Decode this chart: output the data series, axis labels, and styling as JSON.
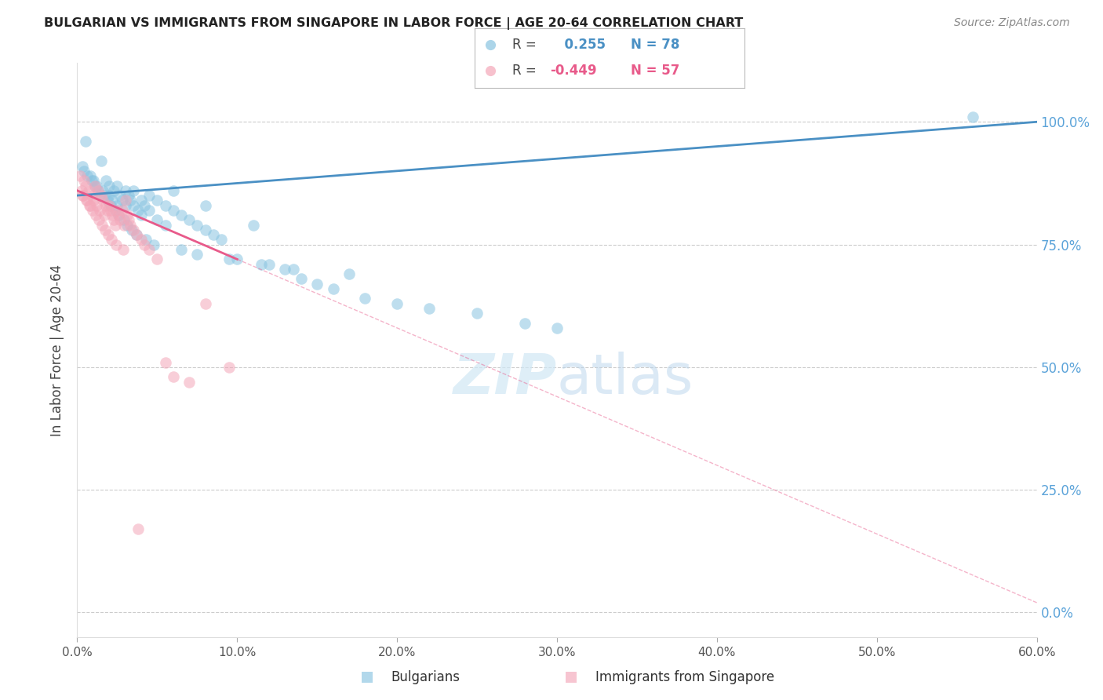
{
  "title": "BULGARIAN VS IMMIGRANTS FROM SINGAPORE IN LABOR FORCE | AGE 20-64 CORRELATION CHART",
  "source": "Source: ZipAtlas.com",
  "ylabel": "In Labor Force | Age 20-64",
  "xlabel_ticks": [
    "0.0%",
    "10.0%",
    "20.0%",
    "30.0%",
    "40.0%",
    "50.0%",
    "60.0%"
  ],
  "xlabel_vals": [
    0,
    10,
    20,
    30,
    40,
    50,
    60
  ],
  "ylabel_ticks": [
    "0.0%",
    "25.0%",
    "50.0%",
    "75.0%",
    "100.0%"
  ],
  "ylabel_vals": [
    0,
    25,
    50,
    75,
    100
  ],
  "xlim": [
    0,
    60
  ],
  "ylim": [
    -5,
    112
  ],
  "bg_color": "#ffffff",
  "grid_color": "#cccccc",
  "blue_color": "#89c4e1",
  "pink_color": "#f4a7b9",
  "blue_line_color": "#4a90c4",
  "pink_line_color": "#e85a8a",
  "right_axis_color": "#5ba3d9",
  "legend_blue_R": "0.255",
  "legend_blue_N": "78",
  "legend_pink_R": "-0.449",
  "legend_pink_N": "57",
  "blue_x": [
    0.3,
    0.5,
    0.8,
    1.0,
    1.2,
    1.4,
    1.5,
    1.6,
    1.8,
    2.0,
    2.0,
    2.2,
    2.3,
    2.5,
    2.5,
    2.7,
    2.8,
    3.0,
    3.0,
    3.2,
    3.3,
    3.5,
    3.5,
    3.8,
    4.0,
    4.0,
    4.2,
    4.5,
    4.5,
    5.0,
    5.0,
    5.5,
    5.5,
    6.0,
    6.0,
    6.5,
    7.0,
    7.5,
    8.0,
    8.0,
    8.5,
    9.0,
    10.0,
    11.0,
    12.0,
    13.0,
    14.0,
    15.0,
    16.0,
    18.0,
    20.0,
    22.0,
    25.0,
    28.0,
    30.0,
    56.0,
    0.4,
    0.6,
    0.9,
    1.1,
    1.3,
    1.7,
    1.9,
    2.1,
    2.4,
    2.6,
    2.9,
    3.1,
    3.4,
    3.7,
    4.3,
    4.8,
    6.5,
    7.5,
    9.5,
    11.5,
    13.5,
    17.0
  ],
  "blue_y": [
    91,
    96,
    89,
    88,
    87,
    85,
    92,
    86,
    88,
    87,
    85,
    84,
    86,
    87,
    83,
    85,
    84,
    86,
    83,
    85,
    84,
    83,
    86,
    82,
    84,
    81,
    83,
    82,
    85,
    84,
    80,
    83,
    79,
    82,
    86,
    81,
    80,
    79,
    83,
    78,
    77,
    76,
    72,
    79,
    71,
    70,
    68,
    67,
    66,
    64,
    63,
    62,
    61,
    59,
    58,
    101,
    90,
    89,
    88,
    87,
    86,
    85,
    84,
    83,
    82,
    81,
    80,
    79,
    78,
    77,
    76,
    75,
    74,
    73,
    72,
    71,
    70,
    69
  ],
  "pink_x": [
    0.2,
    0.3,
    0.4,
    0.5,
    0.6,
    0.7,
    0.8,
    0.9,
    1.0,
    1.1,
    1.2,
    1.3,
    1.4,
    1.5,
    1.6,
    1.7,
    1.8,
    1.9,
    2.0,
    2.1,
    2.2,
    2.3,
    2.4,
    2.5,
    2.6,
    2.7,
    2.8,
    2.9,
    3.0,
    3.1,
    3.2,
    3.3,
    3.5,
    3.7,
    4.0,
    4.2,
    4.5,
    5.0,
    5.5,
    6.0,
    7.0,
    8.0,
    9.5,
    0.35,
    0.55,
    0.75,
    0.95,
    1.15,
    1.35,
    1.55,
    1.75,
    1.95,
    2.15,
    2.45,
    0.25,
    2.85,
    3.8
  ],
  "pink_y": [
    89,
    85,
    88,
    87,
    84,
    86,
    83,
    85,
    84,
    87,
    83,
    86,
    82,
    85,
    84,
    81,
    83,
    82,
    83,
    82,
    81,
    80,
    79,
    82,
    81,
    80,
    82,
    79,
    84,
    81,
    80,
    79,
    78,
    77,
    76,
    75,
    74,
    72,
    51,
    48,
    47,
    63,
    50,
    85,
    84,
    83,
    82,
    81,
    80,
    79,
    78,
    77,
    76,
    75,
    86,
    74,
    17
  ]
}
